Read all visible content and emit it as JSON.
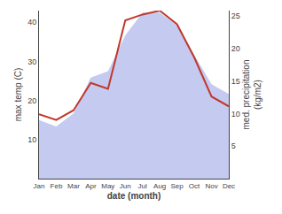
{
  "chart_data": {
    "type": "line",
    "xlabel": "date (month)",
    "ylabel": "max temp (C)",
    "y2label": "med. precipitation\n(kg/m2)",
    "categories": [
      "Jan",
      "Feb",
      "Mar",
      "Apr",
      "May",
      "Jun",
      "Jul",
      "Aug",
      "Sep",
      "Oct",
      "Nov",
      "Dec"
    ],
    "series": [
      {
        "type": "area",
        "color": "#c5caf0",
        "axis": "y2",
        "values": [
          9.0,
          8.0,
          10.0,
          15.5,
          16.5,
          22.0,
          25.5,
          25.5,
          23.5,
          19.0,
          14.5,
          13.0
        ]
      },
      {
        "type": "line",
        "color": "#c0392b",
        "values": [
          16.5,
          15.0,
          17.5,
          24.5,
          23.0,
          40.5,
          42.0,
          43.0,
          39.5,
          31.0,
          21.0,
          18.5
        ]
      }
    ],
    "ylim": [
      0,
      43
    ],
    "yticks": [
      10,
      20,
      30,
      40
    ],
    "y2lim": [
      0,
      25.8
    ],
    "y2ticks": [
      5,
      10,
      15,
      20,
      25
    ],
    "grid": false
  }
}
